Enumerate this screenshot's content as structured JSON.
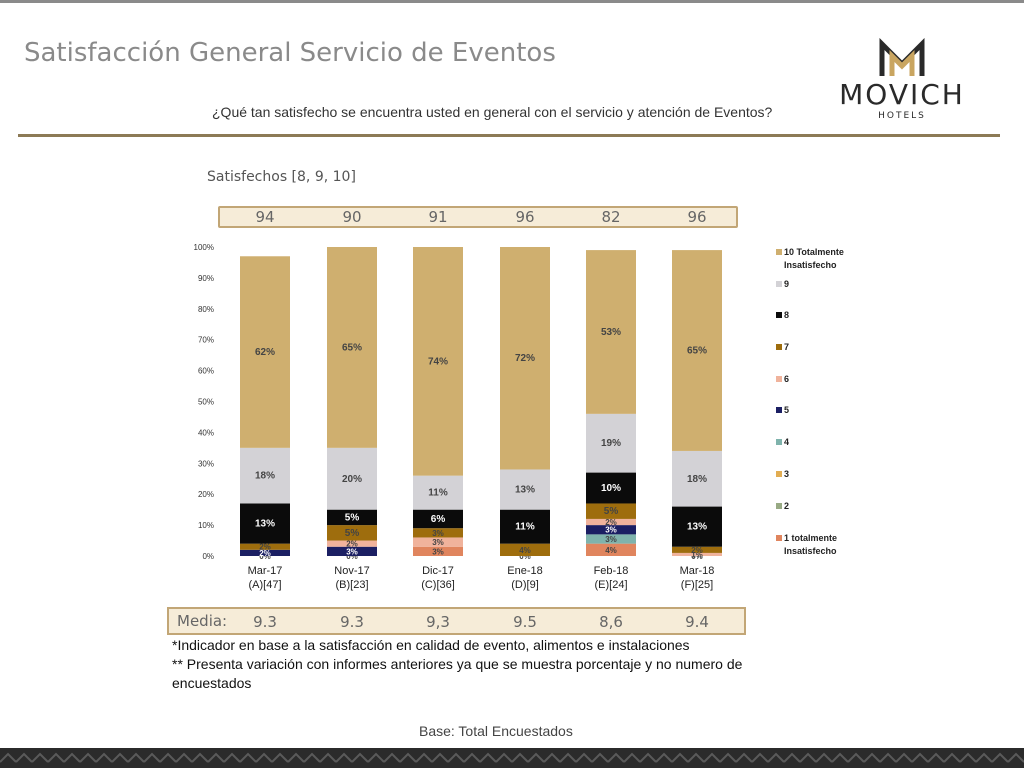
{
  "slide": {
    "title": "Satisfacción General Servicio de Eventos",
    "question": "¿Qué tan satisfecho se encuentra usted en general con el servicio y atención de Eventos?",
    "satisfied_label": "Satisfechos [8, 9, 10]",
    "media_label": "Media:",
    "footnote_1": "*Indicador en base a la satisfacción en calidad de evento, alimentos e instalaciones",
    "footnote_2": "** Presenta variación con informes anteriores ya que se muestra porcentaje y no numero de encuestados",
    "base": "Base: Total Encuestados"
  },
  "logo": {
    "brand": "MOVICH",
    "sub": "HOTELS",
    "gold": "#c9a560",
    "dark": "#2a2a2a"
  },
  "colors": {
    "10": "#cfaf6f",
    "9": "#d3d2d6",
    "8": "#0b0b0b",
    "7": "#9e6d0d",
    "6": "#f0b39c",
    "5": "#1b1f63",
    "4": "#7fb3ac",
    "3": "#e2ad52",
    "2": "#98aa84",
    "1": "#e0855e",
    "band_fill": "#f6ecd8",
    "band_border": "#c2a676",
    "accent_rule": "#8c7a56"
  },
  "chart_data": {
    "type": "bar",
    "stacked": true,
    "categories": [
      [
        "Mar-17",
        "(A)[47]"
      ],
      [
        "Nov-17",
        "(B)[23]"
      ],
      [
        "Dic-17",
        "(C)[36]"
      ],
      [
        "Ene-18",
        "(D)[9]"
      ],
      [
        "Feb-18",
        "(E)[24]"
      ],
      [
        "Mar-18",
        "(F)[25]"
      ]
    ],
    "ylim": [
      0,
      100
    ],
    "yticks": [
      "0%",
      "10%",
      "20%",
      "30%",
      "40%",
      "50%",
      "60%",
      "70%",
      "80%",
      "90%",
      "100%"
    ],
    "series": [
      {
        "name": "1 totalmente Insatisfecho",
        "key": "1",
        "values": [
          0,
          0,
          3,
          0,
          4,
          0
        ],
        "labels": [
          "0%",
          "0%",
          "3%",
          "0%",
          "4%",
          "0%"
        ]
      },
      {
        "name": "2",
        "key": "2",
        "values": [
          0,
          0,
          0,
          0,
          0,
          0
        ],
        "labels": [
          "",
          "",
          "",
          "",
          "",
          ""
        ]
      },
      {
        "name": "3",
        "key": "3",
        "values": [
          0,
          0,
          0,
          0,
          0,
          0
        ],
        "labels": [
          "",
          "",
          "",
          "",
          "",
          ""
        ]
      },
      {
        "name": "4",
        "key": "4",
        "values": [
          0,
          0,
          0,
          0,
          3,
          0
        ],
        "labels": [
          "",
          "",
          "",
          "",
          "3%",
          ""
        ]
      },
      {
        "name": "5",
        "key": "5",
        "values": [
          2,
          3,
          0,
          0,
          3,
          0
        ],
        "labels": [
          "2%",
          "3%",
          "",
          "",
          "3%",
          ""
        ]
      },
      {
        "name": "6",
        "key": "6",
        "values": [
          0,
          2,
          3,
          0,
          2,
          1
        ],
        "labels": [
          "",
          "2%",
          "3%",
          "",
          "2%",
          "1%"
        ]
      },
      {
        "name": "7",
        "key": "7",
        "values": [
          2,
          5,
          3,
          4,
          5,
          2
        ],
        "labels": [
          "2%",
          "5%",
          "3%",
          "4%",
          "5%",
          "2%"
        ]
      },
      {
        "name": "8",
        "key": "8",
        "values": [
          13,
          5,
          6,
          11,
          10,
          13
        ],
        "labels": [
          "13%",
          "5%",
          "6%",
          "11%",
          "10%",
          "13%"
        ]
      },
      {
        "name": "9",
        "key": "9",
        "values": [
          18,
          20,
          11,
          13,
          19,
          18
        ],
        "labels": [
          "18%",
          "20%",
          "11%",
          "13%",
          "19%",
          "18%"
        ]
      },
      {
        "name": "10 Totalmente Insatisfecho",
        "key": "10",
        "values": [
          62,
          65,
          74,
          72,
          53,
          65
        ],
        "labels": [
          "62%",
          "65%",
          "74%",
          "72%",
          "53%",
          "65%"
        ]
      }
    ],
    "legend": [
      "10 Totalmente Insatisfecho",
      "9",
      "8",
      "7",
      "6",
      "5",
      "4",
      "3",
      "2",
      "1 totalmente Insatisfecho"
    ],
    "legend_position": "right",
    "satisfied": [
      "94",
      "90",
      "91",
      "96",
      "82",
      "96"
    ],
    "media": [
      "9.3",
      "9.3",
      "9,3",
      "9.5",
      "8,6",
      "9.4"
    ]
  }
}
